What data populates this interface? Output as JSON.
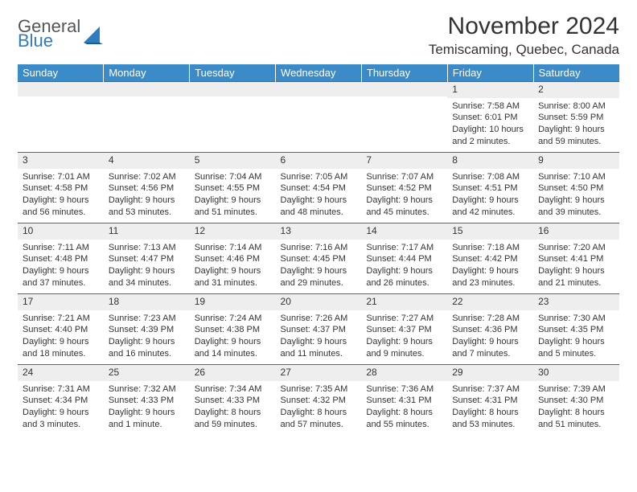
{
  "logo": {
    "word1": "General",
    "word2": "Blue"
  },
  "title": "November 2024",
  "location": "Temiscaming, Quebec, Canada",
  "colors": {
    "header_bg": "#3b8bc9",
    "header_text": "#ffffff",
    "row_border": "#2f6fa3",
    "daynum_bg": "#eeeeee",
    "page_bg": "#ffffff",
    "body_text": "#333333",
    "logo_accent": "#2f7bbf"
  },
  "weekdays": [
    "Sunday",
    "Monday",
    "Tuesday",
    "Wednesday",
    "Thursday",
    "Friday",
    "Saturday"
  ],
  "typography": {
    "title_fontsize": 30,
    "location_fontsize": 17,
    "weekday_fontsize": 13,
    "daynum_fontsize": 12,
    "body_fontsize": 11
  },
  "weeks": [
    [
      null,
      null,
      null,
      null,
      null,
      {
        "n": "1",
        "sunrise": "Sunrise: 7:58 AM",
        "sunset": "Sunset: 6:01 PM",
        "day": "Daylight: 10 hours and 2 minutes."
      },
      {
        "n": "2",
        "sunrise": "Sunrise: 8:00 AM",
        "sunset": "Sunset: 5:59 PM",
        "day": "Daylight: 9 hours and 59 minutes."
      }
    ],
    [
      {
        "n": "3",
        "sunrise": "Sunrise: 7:01 AM",
        "sunset": "Sunset: 4:58 PM",
        "day": "Daylight: 9 hours and 56 minutes."
      },
      {
        "n": "4",
        "sunrise": "Sunrise: 7:02 AM",
        "sunset": "Sunset: 4:56 PM",
        "day": "Daylight: 9 hours and 53 minutes."
      },
      {
        "n": "5",
        "sunrise": "Sunrise: 7:04 AM",
        "sunset": "Sunset: 4:55 PM",
        "day": "Daylight: 9 hours and 51 minutes."
      },
      {
        "n": "6",
        "sunrise": "Sunrise: 7:05 AM",
        "sunset": "Sunset: 4:54 PM",
        "day": "Daylight: 9 hours and 48 minutes."
      },
      {
        "n": "7",
        "sunrise": "Sunrise: 7:07 AM",
        "sunset": "Sunset: 4:52 PM",
        "day": "Daylight: 9 hours and 45 minutes."
      },
      {
        "n": "8",
        "sunrise": "Sunrise: 7:08 AM",
        "sunset": "Sunset: 4:51 PM",
        "day": "Daylight: 9 hours and 42 minutes."
      },
      {
        "n": "9",
        "sunrise": "Sunrise: 7:10 AM",
        "sunset": "Sunset: 4:50 PM",
        "day": "Daylight: 9 hours and 39 minutes."
      }
    ],
    [
      {
        "n": "10",
        "sunrise": "Sunrise: 7:11 AM",
        "sunset": "Sunset: 4:48 PM",
        "day": "Daylight: 9 hours and 37 minutes."
      },
      {
        "n": "11",
        "sunrise": "Sunrise: 7:13 AM",
        "sunset": "Sunset: 4:47 PM",
        "day": "Daylight: 9 hours and 34 minutes."
      },
      {
        "n": "12",
        "sunrise": "Sunrise: 7:14 AM",
        "sunset": "Sunset: 4:46 PM",
        "day": "Daylight: 9 hours and 31 minutes."
      },
      {
        "n": "13",
        "sunrise": "Sunrise: 7:16 AM",
        "sunset": "Sunset: 4:45 PM",
        "day": "Daylight: 9 hours and 29 minutes."
      },
      {
        "n": "14",
        "sunrise": "Sunrise: 7:17 AM",
        "sunset": "Sunset: 4:44 PM",
        "day": "Daylight: 9 hours and 26 minutes."
      },
      {
        "n": "15",
        "sunrise": "Sunrise: 7:18 AM",
        "sunset": "Sunset: 4:42 PM",
        "day": "Daylight: 9 hours and 23 minutes."
      },
      {
        "n": "16",
        "sunrise": "Sunrise: 7:20 AM",
        "sunset": "Sunset: 4:41 PM",
        "day": "Daylight: 9 hours and 21 minutes."
      }
    ],
    [
      {
        "n": "17",
        "sunrise": "Sunrise: 7:21 AM",
        "sunset": "Sunset: 4:40 PM",
        "day": "Daylight: 9 hours and 18 minutes."
      },
      {
        "n": "18",
        "sunrise": "Sunrise: 7:23 AM",
        "sunset": "Sunset: 4:39 PM",
        "day": "Daylight: 9 hours and 16 minutes."
      },
      {
        "n": "19",
        "sunrise": "Sunrise: 7:24 AM",
        "sunset": "Sunset: 4:38 PM",
        "day": "Daylight: 9 hours and 14 minutes."
      },
      {
        "n": "20",
        "sunrise": "Sunrise: 7:26 AM",
        "sunset": "Sunset: 4:37 PM",
        "day": "Daylight: 9 hours and 11 minutes."
      },
      {
        "n": "21",
        "sunrise": "Sunrise: 7:27 AM",
        "sunset": "Sunset: 4:37 PM",
        "day": "Daylight: 9 hours and 9 minutes."
      },
      {
        "n": "22",
        "sunrise": "Sunrise: 7:28 AM",
        "sunset": "Sunset: 4:36 PM",
        "day": "Daylight: 9 hours and 7 minutes."
      },
      {
        "n": "23",
        "sunrise": "Sunrise: 7:30 AM",
        "sunset": "Sunset: 4:35 PM",
        "day": "Daylight: 9 hours and 5 minutes."
      }
    ],
    [
      {
        "n": "24",
        "sunrise": "Sunrise: 7:31 AM",
        "sunset": "Sunset: 4:34 PM",
        "day": "Daylight: 9 hours and 3 minutes."
      },
      {
        "n": "25",
        "sunrise": "Sunrise: 7:32 AM",
        "sunset": "Sunset: 4:33 PM",
        "day": "Daylight: 9 hours and 1 minute."
      },
      {
        "n": "26",
        "sunrise": "Sunrise: 7:34 AM",
        "sunset": "Sunset: 4:33 PM",
        "day": "Daylight: 8 hours and 59 minutes."
      },
      {
        "n": "27",
        "sunrise": "Sunrise: 7:35 AM",
        "sunset": "Sunset: 4:32 PM",
        "day": "Daylight: 8 hours and 57 minutes."
      },
      {
        "n": "28",
        "sunrise": "Sunrise: 7:36 AM",
        "sunset": "Sunset: 4:31 PM",
        "day": "Daylight: 8 hours and 55 minutes."
      },
      {
        "n": "29",
        "sunrise": "Sunrise: 7:37 AM",
        "sunset": "Sunset: 4:31 PM",
        "day": "Daylight: 8 hours and 53 minutes."
      },
      {
        "n": "30",
        "sunrise": "Sunrise: 7:39 AM",
        "sunset": "Sunset: 4:30 PM",
        "day": "Daylight: 8 hours and 51 minutes."
      }
    ]
  ]
}
